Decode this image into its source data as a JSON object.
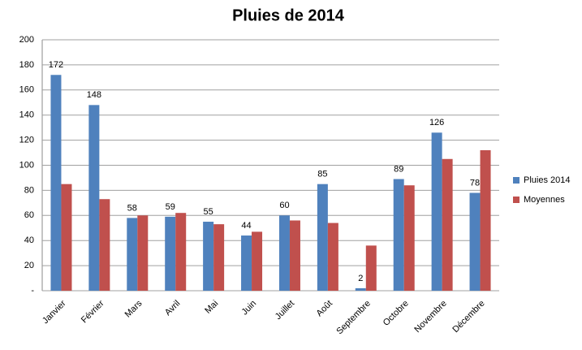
{
  "chart_data": {
    "type": "bar",
    "title": "Pluies de 2014",
    "categories": [
      "Janvier",
      "Février",
      "Mars",
      "Avril",
      "Mai",
      "Juin",
      "Juillet",
      "Août",
      "Septembre",
      "Octobre",
      "Novembre",
      "Décembre"
    ],
    "series": [
      {
        "name": "Pluies 2014",
        "color": "#4f81bd",
        "values": [
          172,
          148,
          58,
          59,
          55,
          44,
          60,
          85,
          2,
          89,
          126,
          78
        ]
      },
      {
        "name": "Moyennes",
        "color": "#c0504d",
        "values": [
          85,
          73,
          60,
          62,
          53,
          47,
          56,
          54,
          36,
          84,
          105,
          112
        ]
      }
    ],
    "ylim": [
      0,
      200
    ],
    "yticks": [
      {
        "value": 0,
        "label": "-"
      },
      20,
      40,
      60,
      80,
      100,
      120,
      140,
      160,
      180,
      200
    ],
    "grid": true,
    "legend": "right"
  }
}
